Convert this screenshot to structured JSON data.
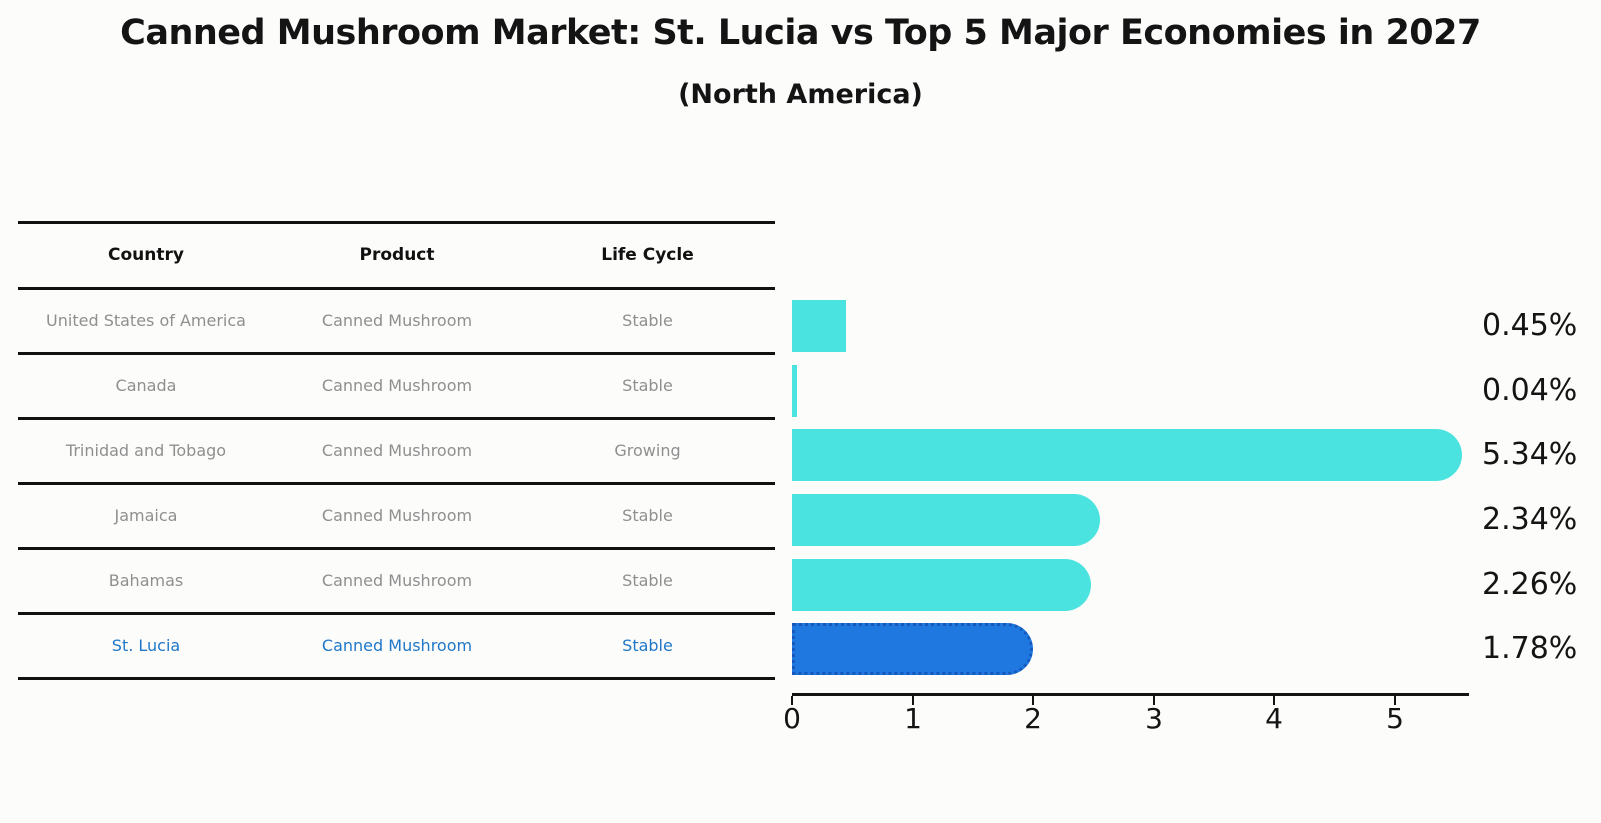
{
  "page": {
    "title": "Canned Mushroom Market: St. Lucia vs Top 5 Major Economies in 2027",
    "subtitle": "(North America)"
  },
  "table": {
    "columns": [
      "Country",
      "Product",
      "Life Cycle"
    ],
    "rows": [
      {
        "country": "United States of America",
        "product": "Canned Mushroom",
        "life_cycle": "Stable",
        "highlighted": false
      },
      {
        "country": "Canada",
        "product": "Canned Mushroom",
        "life_cycle": "Stable",
        "highlighted": false
      },
      {
        "country": "Trinidad and Tobago",
        "product": "Canned Mushroom",
        "life_cycle": "Growing",
        "highlighted": false
      },
      {
        "country": "Jamaica",
        "product": "Canned Mushroom",
        "life_cycle": "Stable",
        "highlighted": false
      },
      {
        "country": "Bahamas",
        "product": "Canned Mushroom",
        "life_cycle": "Stable",
        "highlighted": false
      },
      {
        "country": "St. Lucia",
        "product": "Canned Mushroom",
        "life_cycle": "Stable",
        "highlighted": true
      }
    ]
  },
  "chart_data": {
    "type": "bar",
    "orientation": "horizontal",
    "title": "Canned Mushroom Market: St. Lucia vs Top 5 Major Economies in 2027",
    "subtitle": "(North America)",
    "categories": [
      "United States of America",
      "Canada",
      "Trinidad and Tobago",
      "Jamaica",
      "Bahamas",
      "St. Lucia"
    ],
    "values": [
      0.45,
      0.04,
      5.34,
      2.34,
      2.26,
      1.78
    ],
    "value_labels": [
      "0.45%",
      "0.04%",
      "5.34%",
      "2.34%",
      "2.26%",
      "1.78%"
    ],
    "xlabel": "",
    "ylabel": "",
    "xlim": [
      0,
      5.6
    ],
    "xticks": [
      0,
      1,
      2,
      3,
      4,
      5
    ],
    "grid": false,
    "legend": "none",
    "bar_color": "#4be3df",
    "highlight_color": "#1e78e0",
    "highlight_border_color": "#1659bd",
    "highlight_index": 5,
    "highlight_text_color": "#1f77c8"
  },
  "colors": {
    "background": "#fcfcfb",
    "text_dark": "#141414",
    "text_gray": "#8f8f8f",
    "rule": "#111111"
  }
}
